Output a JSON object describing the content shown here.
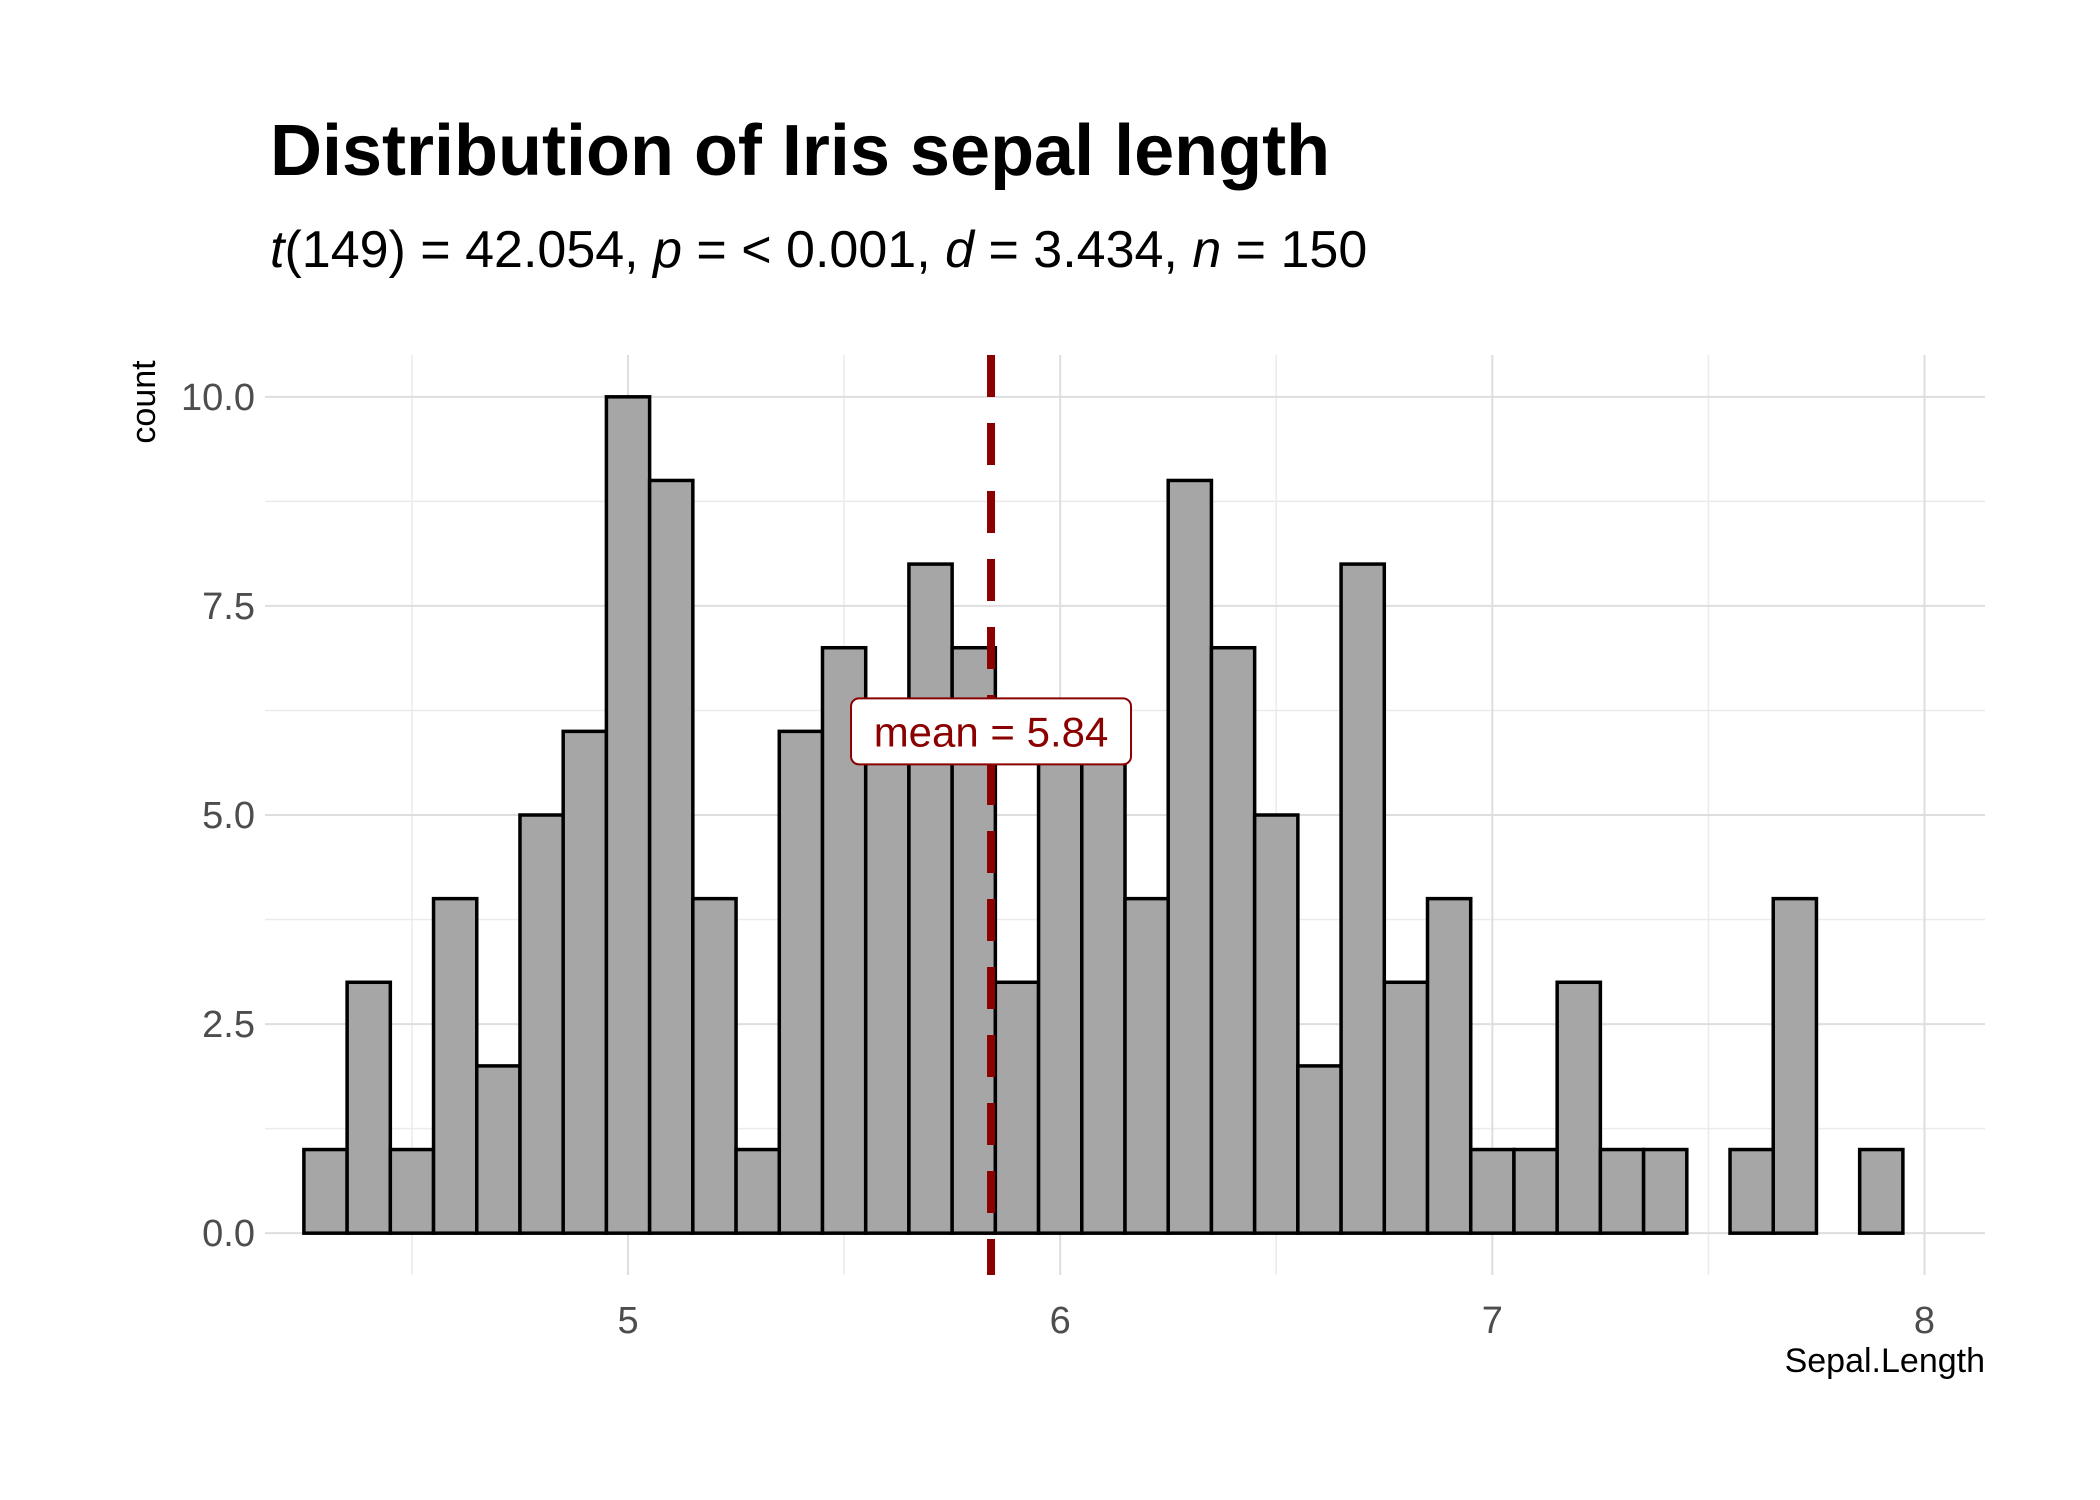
{
  "chart_data": {
    "type": "bar",
    "title": "Distribution of Iris sepal length",
    "subtitle": {
      "t_label": "t",
      "t_df": "(149) = 42.054, ",
      "p_label": "p",
      "p_text": " = < 0.001, ",
      "d_label": "d",
      "d_text": " = 3.434, ",
      "n_label": "n",
      "n_text": " = 150"
    },
    "xlabel": "Sepal.Length",
    "ylabel": "count",
    "xlim": [
      4.16,
      8.14
    ],
    "ylim": [
      -0.5,
      10.5
    ],
    "x_ticks": [
      5,
      6,
      7,
      8
    ],
    "x_tick_labels": [
      "5",
      "6",
      "7",
      "8"
    ],
    "y_ticks": [
      0,
      2.5,
      5,
      7.5,
      10
    ],
    "y_tick_labels": [
      "0.0",
      "2.5",
      "5.0",
      "7.5",
      "10.0"
    ],
    "bin_width": 0.1,
    "bin_centers": [
      4.3,
      4.4,
      4.5,
      4.6,
      4.7,
      4.8,
      4.9,
      5.0,
      5.1,
      5.2,
      5.3,
      5.4,
      5.5,
      5.6,
      5.7,
      5.8,
      5.9,
      6.0,
      6.1,
      6.2,
      6.3,
      6.4,
      6.5,
      6.6,
      6.7,
      6.8,
      6.9,
      7.0,
      7.1,
      7.2,
      7.3,
      7.4,
      7.5,
      7.6,
      7.7,
      7.8,
      7.9
    ],
    "counts": [
      1,
      3,
      1,
      4,
      2,
      5,
      6,
      10,
      9,
      4,
      1,
      6,
      7,
      6,
      8,
      7,
      3,
      6,
      6,
      4,
      9,
      7,
      5,
      2,
      8,
      3,
      4,
      1,
      1,
      3,
      1,
      1,
      0,
      1,
      4,
      0,
      1
    ],
    "bar_fill": "#a6a6a6",
    "bar_stroke": "#000000",
    "grid": true,
    "mean_value": 5.84,
    "mean_label": "mean = 5.84",
    "mean_color": "#8b0000"
  }
}
